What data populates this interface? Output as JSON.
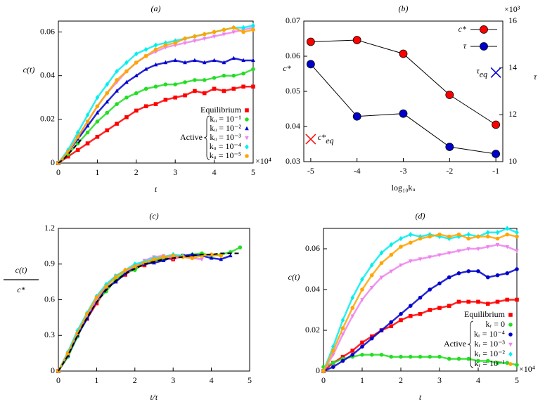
{
  "chart_data": [
    {
      "type": "scatter",
      "title": "(a)",
      "ylabel": "c(t)",
      "xlabel": "t",
      "x_multiplier": "×10⁴",
      "xlim": [
        0,
        5
      ],
      "ylim": [
        0,
        0.065
      ],
      "xticks": [
        0,
        1,
        2,
        3,
        4,
        5
      ],
      "yticks": [
        0,
        0.02,
        0.04,
        0.06
      ],
      "legend": "lower right",
      "legend_group_label": "Active",
      "x": [
        0,
        0.25,
        0.5,
        0.75,
        1,
        1.25,
        1.5,
        1.75,
        2,
        2.25,
        2.5,
        2.75,
        3,
        3.25,
        3.5,
        3.75,
        4,
        4.25,
        4.5,
        4.75,
        5
      ],
      "series": [
        {
          "name": "Equilibrium",
          "color": "#ff0000",
          "marker": "square",
          "values": [
            0,
            0.003,
            0.006,
            0.009,
            0.012,
            0.015,
            0.018,
            0.021,
            0.024,
            0.026,
            0.027,
            0.029,
            0.03,
            0.031,
            0.033,
            0.032,
            0.034,
            0.033,
            0.034,
            0.035,
            0.035
          ]
        },
        {
          "name": "kᵤ = 10⁻¹",
          "active": true,
          "color": "#22dd22",
          "marker": "circle",
          "values": [
            0,
            0.004,
            0.009,
            0.014,
            0.019,
            0.023,
            0.027,
            0.03,
            0.032,
            0.034,
            0.035,
            0.036,
            0.036,
            0.037,
            0.038,
            0.038,
            0.039,
            0.04,
            0.04,
            0.041,
            0.043
          ]
        },
        {
          "name": "kᵤ = 10⁻²",
          "active": true,
          "color": "#0000cc",
          "marker": "triangle",
          "values": [
            0,
            0.005,
            0.011,
            0.017,
            0.023,
            0.028,
            0.033,
            0.037,
            0.04,
            0.043,
            0.045,
            0.046,
            0.047,
            0.046,
            0.047,
            0.046,
            0.047,
            0.046,
            0.048,
            0.047,
            0.047
          ]
        },
        {
          "name": "kᵤ = 10⁻³",
          "active": true,
          "color": "#ee82ee",
          "marker": "triangle-down",
          "values": [
            0,
            0.005,
            0.012,
            0.019,
            0.026,
            0.032,
            0.037,
            0.042,
            0.046,
            0.049,
            0.051,
            0.053,
            0.054,
            0.055,
            0.056,
            0.057,
            0.058,
            0.059,
            0.06,
            0.061,
            0.062
          ]
        },
        {
          "name": "kᵤ = 10⁻⁴",
          "active": true,
          "color": "#00eeee",
          "marker": "diamond",
          "values": [
            0,
            0.006,
            0.014,
            0.022,
            0.03,
            0.036,
            0.042,
            0.046,
            0.05,
            0.052,
            0.054,
            0.055,
            0.056,
            0.057,
            0.058,
            0.059,
            0.06,
            0.061,
            0.062,
            0.062,
            0.063
          ]
        },
        {
          "name": "kᵤ = 10⁻⁵",
          "active": true,
          "color": "#ffa500",
          "marker": "circle",
          "values": [
            0,
            0.005,
            0.012,
            0.019,
            0.026,
            0.032,
            0.038,
            0.042,
            0.046,
            0.049,
            0.052,
            0.054,
            0.055,
            0.057,
            0.058,
            0.059,
            0.06,
            0.061,
            0.062,
            0.06,
            0.061
          ]
        },
        {
          "color": "#000000",
          "dashed": true,
          "x": [
            0,
            0.15,
            0.3,
            0.45,
            0.6
          ],
          "values": [
            0,
            0.002,
            0.005,
            0.008,
            0.011
          ]
        }
      ]
    },
    {
      "type": "line",
      "title": "(b)",
      "ylabel": "c*",
      "y2label": "τ",
      "xlabel": "log₁₀kᵤ",
      "y2_multiplier": "×10³",
      "xlim": [
        -5.15,
        -0.85
      ],
      "ylim": [
        0.03,
        0.07
      ],
      "y2lim": [
        10,
        16
      ],
      "xticks": [
        -5,
        -4,
        -3,
        -2,
        -1
      ],
      "yticks": [
        0.03,
        0.04,
        0.05,
        0.06,
        0.07
      ],
      "y2ticks": [
        10,
        12,
        14,
        16
      ],
      "legend": "upper right",
      "x": [
        -5,
        -4,
        -3,
        -2,
        -1
      ],
      "series": [
        {
          "name": "c*",
          "color": "#ff0000",
          "values": [
            0.0641,
            0.0646,
            0.0607,
            0.049,
            0.0405
          ]
        },
        {
          "name": "τ",
          "color": "#0000cc",
          "axis": "y2",
          "values": [
            14.16,
            11.93,
            12.05,
            10.63,
            10.33
          ]
        }
      ],
      "reference_points": [
        {
          "label": "c*",
          "subscript": "eq",
          "color": "#ff0000",
          "x": -5,
          "value": 0.0364
        },
        {
          "label": "τ",
          "subscript": "eq",
          "color": "#0000cc",
          "axis": "y2",
          "x": -1,
          "value": 13.8
        }
      ]
    },
    {
      "type": "scatter",
      "title": "(c)",
      "ylabel_numerator": "c(t)",
      "ylabel_denominator": "c*",
      "xlabel": "t/τ",
      "xlim": [
        0,
        5
      ],
      "ylim": [
        0,
        1.2
      ],
      "xticks": [
        0,
        1,
        2,
        3,
        4,
        5
      ],
      "yticks": [
        0,
        0.3,
        0.6,
        0.9,
        1.2
      ],
      "x": [
        0,
        0.25,
        0.5,
        0.75,
        1,
        1.25,
        1.5,
        1.75,
        2,
        2.25,
        2.5,
        2.75,
        3,
        3.25,
        3.5,
        3.75,
        4,
        4.25,
        4.5,
        4.75
      ],
      "series": [
        {
          "color": "#ff0000",
          "marker": "square",
          "values": [
            0,
            0.14,
            0.31,
            0.44,
            0.57,
            0.69,
            0.76,
            0.81,
            0.87,
            0.89,
            0.93,
            0.95,
            0.94,
            0.97,
            0.96,
            null,
            null,
            null,
            null,
            null
          ]
        },
        {
          "color": "#22dd22",
          "marker": "circle",
          "values": [
            0,
            0.12,
            0.29,
            0.46,
            0.59,
            0.67,
            0.77,
            0.83,
            0.85,
            0.91,
            0.93,
            0.95,
            0.97,
            0.96,
            0.98,
            0.99,
            0.97,
            0.98,
            1.0,
            1.04
          ]
        },
        {
          "color": "#0000cc",
          "marker": "triangle",
          "values": [
            0,
            0.13,
            0.3,
            0.44,
            0.59,
            0.7,
            0.75,
            0.82,
            0.88,
            0.9,
            0.91,
            0.93,
            0.96,
            0.97,
            0.98,
            0.97,
            0.95,
            0.94,
            0.97,
            null
          ]
        },
        {
          "color": "#ee82ee",
          "marker": "triangle-down",
          "values": [
            0,
            0.15,
            0.33,
            0.47,
            0.6,
            0.72,
            0.8,
            0.84,
            0.88,
            0.93,
            0.96,
            0.97,
            0.95,
            0.96,
            0.95,
            0.94,
            null,
            null,
            null,
            null
          ]
        },
        {
          "color": "#00eeee",
          "marker": "diamond",
          "values": [
            0,
            0.16,
            0.34,
            0.49,
            0.63,
            0.73,
            0.8,
            0.85,
            0.9,
            0.92,
            0.95,
            0.96,
            0.98,
            0.97,
            null,
            null,
            null,
            null,
            null,
            null
          ]
        },
        {
          "color": "#ffa500",
          "marker": "circle",
          "values": [
            0,
            0.15,
            0.32,
            0.48,
            0.62,
            0.71,
            0.79,
            0.85,
            0.88,
            0.91,
            0.94,
            0.96,
            0.97,
            0.96,
            0.95,
            0.97,
            0.98,
            0.97,
            null,
            null
          ]
        },
        {
          "color": "#000000",
          "dashed": true,
          "values": [
            0,
            0.13,
            0.3,
            0.45,
            0.58,
            0.68,
            0.76,
            0.82,
            0.86,
            0.9,
            0.92,
            0.94,
            0.95,
            0.96,
            0.97,
            0.98,
            0.98,
            0.99,
            0.99,
            0.99
          ]
        }
      ]
    },
    {
      "type": "scatter",
      "title": "(d)",
      "ylabel": "c(t)",
      "xlabel": "t",
      "x_multiplier": "×10⁴",
      "xlim": [
        0,
        5
      ],
      "ylim": [
        0,
        0.07
      ],
      "xticks": [
        0,
        1,
        2,
        3,
        4,
        5
      ],
      "yticks": [
        0,
        0.02,
        0.04,
        0.06
      ],
      "legend": "lower right",
      "legend_group_label": "Active",
      "x": [
        0,
        0.25,
        0.5,
        0.75,
        1,
        1.25,
        1.5,
        1.75,
        2,
        2.25,
        2.5,
        2.75,
        3,
        3.25,
        3.5,
        3.75,
        4,
        4.25,
        4.5,
        4.75,
        5
      ],
      "series": [
        {
          "name": "Equilibrium",
          "color": "#ff0000",
          "marker": "square",
          "values": [
            0,
            0.004,
            0.007,
            0.01,
            0.014,
            0.017,
            0.02,
            0.022,
            0.025,
            0.027,
            0.028,
            0.03,
            0.031,
            0.032,
            0.034,
            0.034,
            0.034,
            0.033,
            0.034,
            0.035,
            0.035
          ]
        },
        {
          "name": "kᵣ = 0",
          "active": true,
          "color": "#22dd22",
          "marker": "circle",
          "values": [
            0.002,
            0.004,
            0.006,
            0.007,
            0.008,
            0.008,
            0.008,
            0.007,
            0.007,
            0.007,
            0.007,
            0.007,
            0.007,
            0.006,
            0.006,
            0.006,
            0.005,
            0.005,
            0.004,
            0.004,
            0.003
          ]
        },
        {
          "name": "kᵣ = 10⁻⁴",
          "active": true,
          "color": "#0000cc",
          "marker": "circle",
          "values": [
            0,
            0.002,
            0.005,
            0.008,
            0.012,
            0.016,
            0.02,
            0.024,
            0.028,
            0.032,
            0.036,
            0.04,
            0.043,
            0.046,
            0.048,
            0.049,
            0.049,
            0.046,
            0.047,
            0.048,
            0.05
          ]
        },
        {
          "name": "kᵣ = 10⁻³",
          "active": true,
          "color": "#ee82ee",
          "marker": "triangle-down",
          "values": [
            0,
            0.008,
            0.018,
            0.027,
            0.035,
            0.041,
            0.046,
            0.049,
            0.052,
            0.054,
            0.055,
            0.056,
            0.057,
            0.058,
            0.059,
            0.06,
            0.06,
            0.061,
            0.062,
            0.061,
            0.059
          ]
        },
        {
          "name": "kᵣ = 10⁻²",
          "active": true,
          "color": "#00eeee",
          "marker": "diamond",
          "values": [
            0,
            0.012,
            0.025,
            0.036,
            0.045,
            0.052,
            0.058,
            0.062,
            0.065,
            0.067,
            0.066,
            0.067,
            0.066,
            0.065,
            0.066,
            0.067,
            0.066,
            0.068,
            0.068,
            0.07,
            0.068
          ]
        },
        {
          "name": "kᵣ = 10⁻¹",
          "active": true,
          "color": "#ffa500",
          "marker": "circle",
          "values": [
            0,
            0.01,
            0.021,
            0.031,
            0.04,
            0.047,
            0.053,
            0.057,
            0.061,
            0.063,
            0.065,
            0.066,
            0.067,
            0.066,
            0.067,
            0.065,
            0.066,
            0.066,
            0.065,
            0.067,
            0.066
          ]
        }
      ]
    }
  ]
}
